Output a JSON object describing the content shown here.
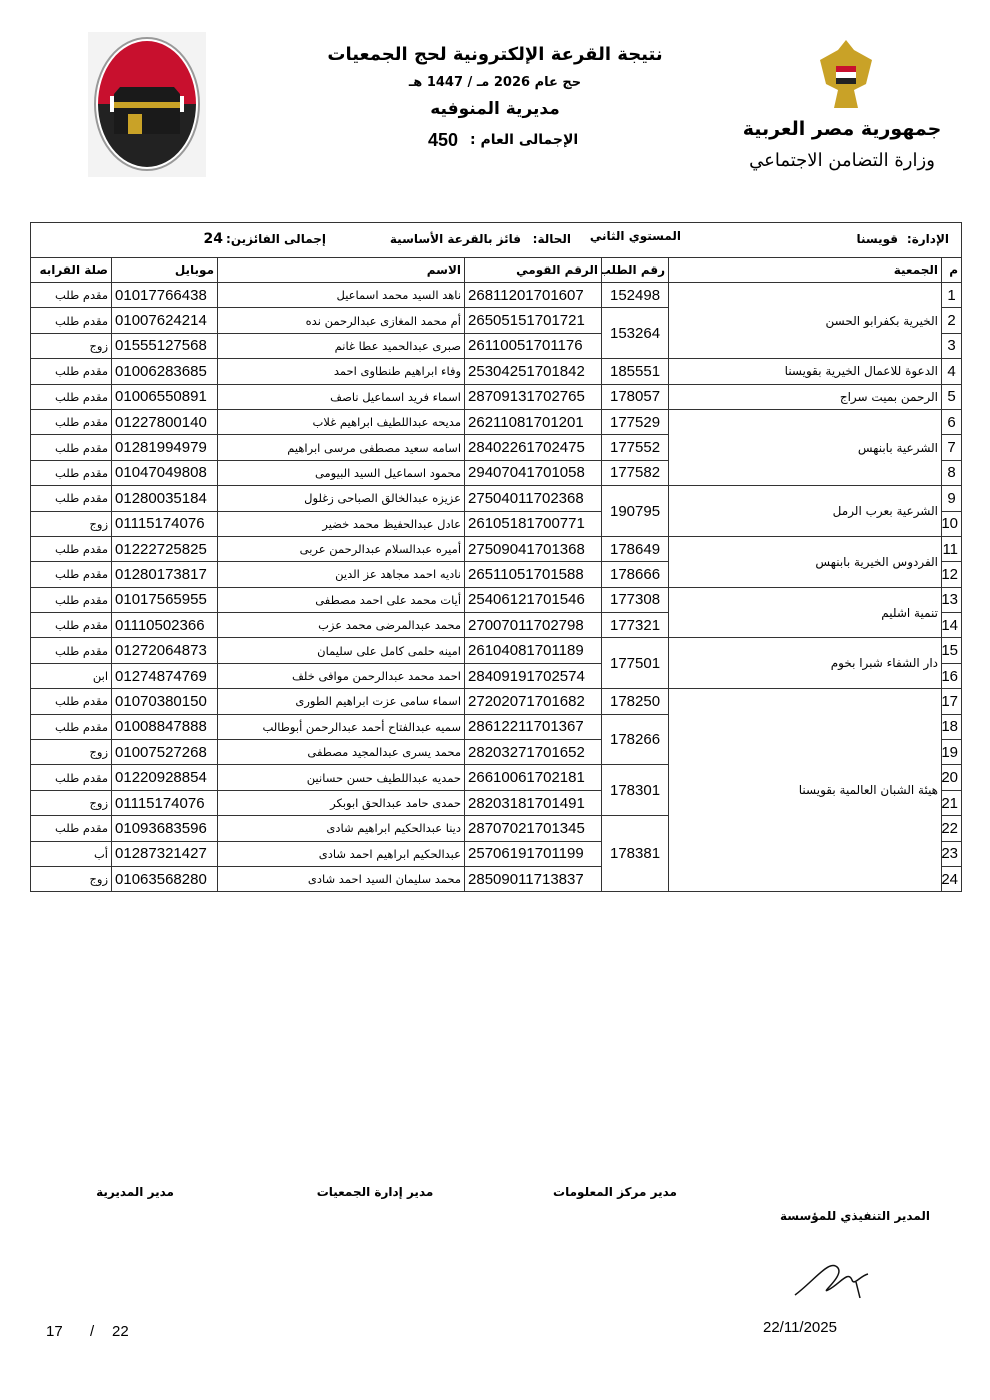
{
  "header": {
    "title": "نتيجة القرعة الإلكترونية لحج الجمعيات",
    "year_line": "حج عام 2026 مـ / 1447 هـ",
    "directorate": "مديرية المنوفيه",
    "total_label": "الإجمالى العام :",
    "total_value": "450",
    "country": "جمهورية مصر العربية",
    "ministry": "وزارة التضامن الاجتماعي"
  },
  "info": {
    "admin_label": "الإدارة:",
    "admin_value": "قويسنا",
    "level": "المستوي الثاني",
    "status_label": "الحالة:",
    "status_value": "فائز بالقرعة الأساسية",
    "winners_label": "إجمالى الفائزين:",
    "winners_value": "24"
  },
  "table": {
    "columns": [
      "م",
      "الجمعية",
      "رقم الطلب",
      "الرقم القومي",
      "الاسم",
      "موبايل",
      "صلة القرابه"
    ],
    "groups": [
      {
        "association": "الخيرية بكفرابو الحسن",
        "requests": [
          {
            "number": "152498",
            "people": [
              {
                "index": "1",
                "national_id": "26811201701607",
                "name": "ناهد السيد محمد اسماعيل",
                "mobile": "01017766438",
                "relation": "مقدم طلب"
              }
            ]
          },
          {
            "number": "153264",
            "people": [
              {
                "index": "2",
                "national_id": "26505151701721",
                "name": "أم محمد المغازى عبدالرحمن نده",
                "mobile": "01007624214",
                "relation": "مقدم طلب"
              },
              {
                "index": "3",
                "national_id": "26110051701176",
                "name": "صبرى عبدالحميد عطا غانم",
                "mobile": "01555127568",
                "relation": "زوج"
              }
            ]
          }
        ]
      },
      {
        "association": "الدعوة للاعمال الخيرية بقويسنا",
        "requests": [
          {
            "number": "185551",
            "people": [
              {
                "index": "4",
                "national_id": "25304251701842",
                "name": "وفاء ابراهيم طنطاوى احمد",
                "mobile": "01006283685",
                "relation": "مقدم طلب"
              }
            ]
          }
        ]
      },
      {
        "association": "الرحمن بميت سراج",
        "requests": [
          {
            "number": "178057",
            "people": [
              {
                "index": "5",
                "national_id": "28709131702765",
                "name": "اسماء فريد اسماعيل ناصف",
                "mobile": "01006550891",
                "relation": "مقدم طلب"
              }
            ]
          }
        ]
      },
      {
        "association": "الشرعية بابنهس",
        "requests": [
          {
            "number": "177529",
            "people": [
              {
                "index": "6",
                "national_id": "26211081701201",
                "name": "مديحه عبداللطيف ابراهيم غلاب",
                "mobile": "01227800140",
                "relation": "مقدم طلب"
              }
            ]
          },
          {
            "number": "177552",
            "people": [
              {
                "index": "7",
                "national_id": "28402261702475",
                "name": "اسامه سعيد مصطفى مرسى ابراهيم",
                "mobile": "01281994979",
                "relation": "مقدم طلب"
              }
            ]
          },
          {
            "number": "177582",
            "people": [
              {
                "index": "8",
                "national_id": "29407041701058",
                "name": "محمود اسماعيل السيد البيومى",
                "mobile": "01047049808",
                "relation": "مقدم طلب"
              }
            ]
          }
        ]
      },
      {
        "association": "الشرعية بعرب الرمل",
        "requests": [
          {
            "number": "190795",
            "people": [
              {
                "index": "9",
                "national_id": "27504011702368",
                "name": "عزيزه عبدالخالق الصباحى زغلول",
                "mobile": "01280035184",
                "relation": "مقدم طلب"
              },
              {
                "index": "10",
                "national_id": "26105181700771",
                "name": "عادل عبدالحفيظ محمد خضير",
                "mobile": "01115174076",
                "relation": "زوج"
              }
            ]
          }
        ]
      },
      {
        "association": "الفردوس الخيرية بابنهس",
        "requests": [
          {
            "number": "178649",
            "people": [
              {
                "index": "11",
                "national_id": "27509041701368",
                "name": "أميره عبدالسلام عبدالرحمن عربى",
                "mobile": "01222725825",
                "relation": "مقدم طلب"
              }
            ]
          },
          {
            "number": "178666",
            "people": [
              {
                "index": "12",
                "national_id": "26511051701588",
                "name": "ناديه احمد مجاهد عز الدين",
                "mobile": "01280173817",
                "relation": "مقدم طلب"
              }
            ]
          }
        ]
      },
      {
        "association": "تنمية اشليم",
        "requests": [
          {
            "number": "177308",
            "people": [
              {
                "index": "13",
                "national_id": "25406121701546",
                "name": "أيات محمد على احمد مصطفى",
                "mobile": "01017565955",
                "relation": "مقدم طلب"
              }
            ]
          },
          {
            "number": "177321",
            "people": [
              {
                "index": "14",
                "national_id": "27007011702798",
                "name": "محمد عبدالمرضى محمد عزب",
                "mobile": "01110502366",
                "relation": "مقدم طلب"
              }
            ]
          }
        ]
      },
      {
        "association": "دار الشفاء شبرا بخوم",
        "requests": [
          {
            "number": "177501",
            "people": [
              {
                "index": "15",
                "national_id": "26104081701189",
                "name": "امينه حلمى كامل على سليمان",
                "mobile": "01272064873",
                "relation": "مقدم طلب"
              },
              {
                "index": "16",
                "national_id": "28409191702574",
                "name": "احمد محمد عبدالرحمن موافى خلف",
                "mobile": "01274874769",
                "relation": "ابن"
              }
            ]
          }
        ]
      },
      {
        "association": "هيئة الشبان العالمية بقويسنا",
        "requests": [
          {
            "number": "178250",
            "people": [
              {
                "index": "17",
                "national_id": "27202071701682",
                "name": "اسماء سامى عزت ابراهيم الطورى",
                "mobile": "01070380150",
                "relation": "مقدم طلب"
              }
            ]
          },
          {
            "number": "178266",
            "people": [
              {
                "index": "18",
                "national_id": "28612211701367",
                "name": "سميه عبدالفتاح أحمد عبدالرحمن أبوطالب",
                "mobile": "01008847888",
                "relation": "مقدم طلب"
              },
              {
                "index": "19",
                "national_id": "28203271701652",
                "name": "محمد يسرى عبدالمجيد مصطفى",
                "mobile": "01007527268",
                "relation": "زوج"
              }
            ]
          },
          {
            "number": "178301",
            "people": [
              {
                "index": "20",
                "national_id": "26610061702181",
                "name": "حمديه عبداللطيف حسن حسانين",
                "mobile": "01220928854",
                "relation": "مقدم طلب"
              },
              {
                "index": "21",
                "national_id": "28203181701491",
                "name": "حمدى حامد عبدالحق ابوبكر",
                "mobile": "01115174076",
                "relation": "زوج"
              }
            ]
          },
          {
            "number": "178381",
            "people": [
              {
                "index": "22",
                "national_id": "28707021701345",
                "name": "دينا عبدالحكيم ابراهيم شادى",
                "mobile": "01093683596",
                "relation": "مقدم طلب"
              },
              {
                "index": "23",
                "national_id": "25706191701199",
                "name": "عبدالحكيم ابراهيم احمد شادى",
                "mobile": "01287321427",
                "relation": "أب"
              },
              {
                "index": "24",
                "national_id": "28509011713837",
                "name": "محمد سليمان السيد احمد شادى",
                "mobile": "01063568280",
                "relation": "زوج"
              }
            ]
          }
        ]
      }
    ]
  },
  "footer": {
    "sign_directorate": "مدير المديرية",
    "sign_associations": "مدير إدارة الجمعيات",
    "sign_info_center": "مدير مركز المعلومات",
    "sign_executive": "المدير التنفيذي للمؤسسة",
    "date": "22/11/2025",
    "page_current": "17",
    "page_separator": "/",
    "page_total": "22"
  }
}
